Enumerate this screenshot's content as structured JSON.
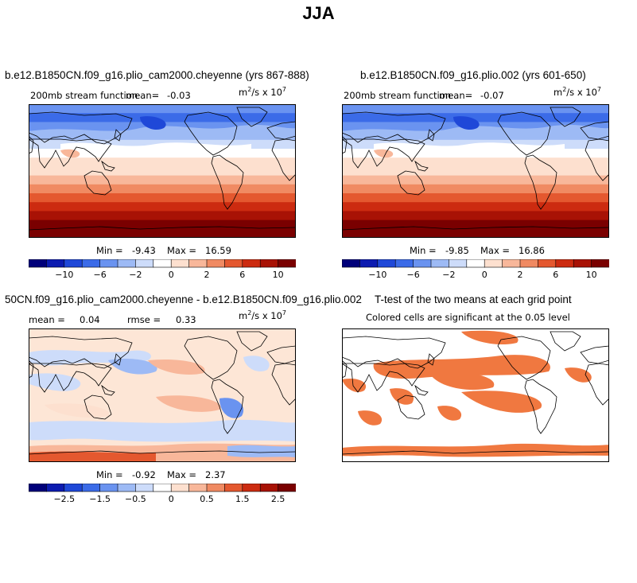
{
  "page_title": "JJA",
  "chart_data": [
    {
      "type": "heatmap",
      "title": "b.e12.B1850CN.f09_g16.plio_cam2000.cheyenne (yrs 867-888)",
      "subtitle": "200mb stream function",
      "mean_label": "mean=",
      "mean": "-0.03",
      "units_base": "m",
      "units_exp1": "2",
      "units_mid": "/s x 10",
      "units_exp2": "7",
      "min_label": "Min =",
      "min": "-9.43",
      "max_label": "Max =",
      "max": "16.59",
      "colorbar_ticks": [
        "-10",
        "-6",
        "-2",
        "0",
        "2",
        "6",
        "10"
      ],
      "colorbar_colors": [
        "#00007a",
        "#0c1bb0",
        "#1f48d8",
        "#3b6be8",
        "#6a93f0",
        "#9dbaf5",
        "#cddcfa",
        "#ffffff",
        "#fde0cf",
        "#f8b79a",
        "#f08a62",
        "#e4582f",
        "#cc2b10",
        "#a81205",
        "#7a0000"
      ]
    },
    {
      "type": "heatmap",
      "title": "b.e12.B1850CN.f09_g16.plio.002 (yrs 601-650)",
      "subtitle": "200mb stream function",
      "mean_label": "mean=",
      "mean": "-0.07",
      "units_base": "m",
      "units_exp1": "2",
      "units_mid": "/s x 10",
      "units_exp2": "7",
      "min_label": "Min =",
      "min": "-9.85",
      "max_label": "Max =",
      "max": "16.86",
      "colorbar_ticks": [
        "-10",
        "-6",
        "-2",
        "0",
        "2",
        "6",
        "10"
      ]
    },
    {
      "type": "heatmap",
      "title": "50CN.f09_g16.plio_cam2000.cheyenne - b.e12.B1850CN.f09_g16.plio.002",
      "mean_label": "mean =",
      "mean": "0.04",
      "rmse_label": "rmse =",
      "rmse": "0.33",
      "units_base": "m",
      "units_exp1": "2",
      "units_mid": "/s x 10",
      "units_exp2": "7",
      "min_label": "Min =",
      "min": "-0.92",
      "max_label": "Max =",
      "max": "2.37",
      "colorbar_ticks": [
        "-2.5",
        "-1.5",
        "-0.5",
        "0",
        "0.5",
        "1.5",
        "2.5"
      ]
    },
    {
      "type": "heatmap",
      "title": "T-test of the two means at each grid point",
      "subtitle": "Colored cells are significant at the 0.05 level"
    }
  ]
}
